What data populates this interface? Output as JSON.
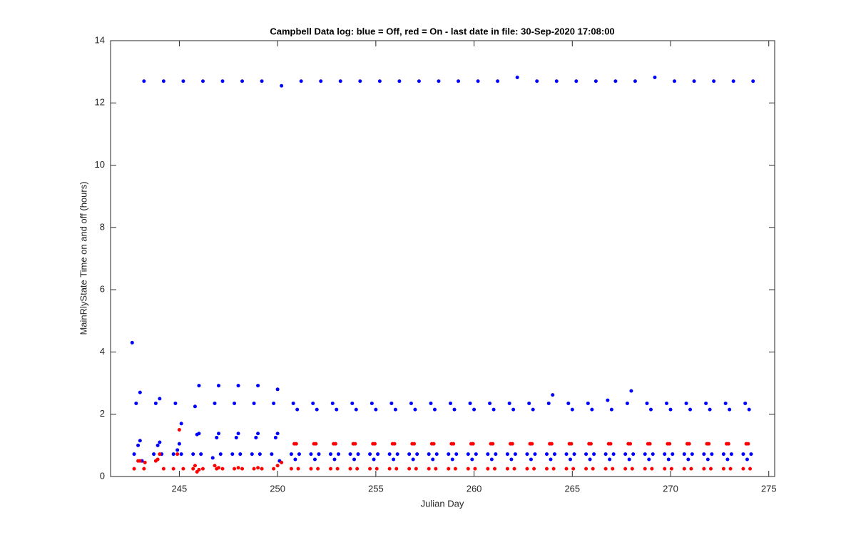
{
  "chart_data": {
    "type": "scatter",
    "title": "Campbell Data log: blue = Off, red = On -  last date in file: 30-Sep-2020 17:08:00",
    "x_label": "Julian Day",
    "y_label": "MainRlyState Time on and off (hours)",
    "xlim": [
      241.5,
      275.3
    ],
    "ylim": [
      0,
      14
    ],
    "xticks": [
      245,
      250,
      255,
      260,
      265,
      270,
      275
    ],
    "yticks": [
      0,
      2,
      4,
      6,
      8,
      10,
      12,
      14
    ],
    "series": [
      {
        "color": "#0000ff",
        "x": [
          243.2,
          244.2,
          245.2,
          246.2,
          247.2,
          248.2,
          249.2,
          250.2,
          251.2,
          252.2,
          253.2,
          254.2,
          255.2,
          256.2,
          257.2,
          258.2,
          259.2,
          260.2,
          261.2,
          262.2,
          263.2,
          264.2,
          265.2,
          266.2,
          267.2,
          268.2,
          269.2,
          270.2,
          271.2,
          272.2,
          273.2,
          274.2,
          242.6,
          242.8,
          243.0,
          243.8,
          244.0,
          244.8,
          245.1,
          245.8,
          246.0,
          246.8,
          247.0,
          247.8,
          248.0,
          248.8,
          249.0,
          249.8,
          250.0,
          250.8,
          251,
          251.8,
          252,
          252.8,
          253,
          253.8,
          254,
          254.8,
          255,
          255.8,
          256,
          256.8,
          257,
          257.8,
          258,
          258.8,
          259,
          259.8,
          260,
          260.8,
          261,
          261.8,
          262,
          262.8,
          263,
          263.8,
          264,
          264.8,
          265,
          265.8,
          266,
          266.8,
          267,
          267.8,
          268,
          268.8,
          269,
          269.8,
          270,
          270.8,
          271,
          271.8,
          272,
          272.8,
          273,
          273.8,
          274,
          242.7,
          242.9,
          243.0,
          243.1,
          243.7,
          243.9,
          244.0,
          244.1,
          244.7,
          244.9,
          245.0,
          245.1,
          245.7,
          245.9,
          246.0,
          246.1,
          246.7,
          246.9,
          247.0,
          247.1,
          247.7,
          247.9,
          248.0,
          248.1,
          248.7,
          248.9,
          249.0,
          249.1,
          249.7,
          249.9,
          250.0,
          250.1,
          250.7,
          250.9,
          251.1,
          251.7,
          251.9,
          252.1,
          252.7,
          252.9,
          253.1,
          253.7,
          253.9,
          254.1,
          254.7,
          254.9,
          255.1,
          255.7,
          255.9,
          256.1,
          256.7,
          256.9,
          257.1,
          257.7,
          257.9,
          258.1,
          258.7,
          258.9,
          259.1,
          259.7,
          259.9,
          260.1,
          260.7,
          260.9,
          261.1,
          261.7,
          261.9,
          262.1,
          262.7,
          262.9,
          263.1,
          263.7,
          263.9,
          264.1,
          264.7,
          264.9,
          265.1,
          265.7,
          265.9,
          266.1,
          266.7,
          266.9,
          267.1,
          267.7,
          267.9,
          268.1,
          268.7,
          268.9,
          269.1,
          269.7,
          269.9,
          270.1,
          270.7,
          270.9,
          271.1,
          271.7,
          271.9,
          272.1,
          272.7,
          272.9,
          273.1,
          273.7,
          273.9,
          274.1
        ],
        "values": [
          12.7,
          12.7,
          12.7,
          12.7,
          12.7,
          12.7,
          12.7,
          12.55,
          12.7,
          12.7,
          12.7,
          12.7,
          12.7,
          12.7,
          12.7,
          12.7,
          12.7,
          12.7,
          12.7,
          12.82,
          12.7,
          12.7,
          12.7,
          12.7,
          12.7,
          12.7,
          12.82,
          12.7,
          12.7,
          12.7,
          12.7,
          12.7,
          4.3,
          2.35,
          2.7,
          2.35,
          2.5,
          2.35,
          1.7,
          2.25,
          2.92,
          2.35,
          2.92,
          2.35,
          2.92,
          2.35,
          2.92,
          2.35,
          2.8,
          2.35,
          2.15,
          2.35,
          2.15,
          2.35,
          2.15,
          2.35,
          2.15,
          2.35,
          2.15,
          2.35,
          2.15,
          2.35,
          2.15,
          2.35,
          2.15,
          2.35,
          2.15,
          2.35,
          2.15,
          2.35,
          2.15,
          2.35,
          2.15,
          2.35,
          2.15,
          2.35,
          2.62,
          2.35,
          2.15,
          2.35,
          2.15,
          2.45,
          2.15,
          2.35,
          2.75,
          2.35,
          2.15,
          2.35,
          2.15,
          2.35,
          2.15,
          2.35,
          2.15,
          2.35,
          2.15,
          2.35,
          2.15,
          0.72,
          1.0,
          1.15,
          0.5,
          0.72,
          1.0,
          1.1,
          0.72,
          0.72,
          0.85,
          1.05,
          0.72,
          0.72,
          1.35,
          1.38,
          0.72,
          0.6,
          1.25,
          1.38,
          0.72,
          0.72,
          1.25,
          1.38,
          0.72,
          0.72,
          1.25,
          1.38,
          0.72,
          0.72,
          1.25,
          1.38,
          0.5,
          0.72,
          0.55,
          0.72,
          0.72,
          0.55,
          0.72,
          0.72,
          0.55,
          0.72,
          0.72,
          0.55,
          0.72,
          0.72,
          0.55,
          0.72,
          0.72,
          0.55,
          0.72,
          0.72,
          0.55,
          0.72,
          0.72,
          0.55,
          0.72,
          0.72,
          0.55,
          0.72,
          0.72,
          0.55,
          0.72,
          0.72,
          0.55,
          0.72,
          0.72,
          0.55,
          0.72,
          0.72,
          0.55,
          0.72,
          0.72,
          0.55,
          0.72,
          0.72,
          0.55,
          0.72,
          0.72,
          0.55,
          0.72,
          0.72,
          0.55,
          0.72,
          0.72,
          0.55,
          0.72,
          0.72,
          0.55,
          0.72,
          0.72,
          0.55,
          0.72,
          0.72,
          0.55,
          0.72,
          0.72,
          0.55,
          0.72,
          0.72,
          0.55,
          0.72,
          0.72,
          0.55,
          0.72
        ]
      },
      {
        "color": "#ff0000",
        "x": [
          242.7,
          242.9,
          243.0,
          243.2,
          243.25,
          243.8,
          243.9,
          244.0,
          244.2,
          244.7,
          244.9,
          245.0,
          245.2,
          245.7,
          245.8,
          245.9,
          246.0,
          246.2,
          246.8,
          246.9,
          247.0,
          247.2,
          247.8,
          248.0,
          248.2,
          248.8,
          249.0,
          249.2,
          249.8,
          250.0,
          250.2,
          250.7,
          250.85,
          250.95,
          251.05,
          251.7,
          251.85,
          251.95,
          252.05,
          252.7,
          252.85,
          252.95,
          253.05,
          253.7,
          253.85,
          253.95,
          254.05,
          254.7,
          254.85,
          254.95,
          255.05,
          255.7,
          255.85,
          255.95,
          256.05,
          256.7,
          256.85,
          256.95,
          257.05,
          257.7,
          257.85,
          257.95,
          258.05,
          258.7,
          258.85,
          258.95,
          259.05,
          259.7,
          259.85,
          259.95,
          260.05,
          260.7,
          260.85,
          260.95,
          261.05,
          261.7,
          261.85,
          261.95,
          262.05,
          262.7,
          262.85,
          262.95,
          263.05,
          263.7,
          263.85,
          263.95,
          264.05,
          264.7,
          264.85,
          264.95,
          265.05,
          265.7,
          265.85,
          265.95,
          266.05,
          266.7,
          266.85,
          266.95,
          267.05,
          267.7,
          267.85,
          267.95,
          268.05,
          268.7,
          268.85,
          268.95,
          269.05,
          269.7,
          269.85,
          269.95,
          270.05,
          270.7,
          270.85,
          270.95,
          271.05,
          271.7,
          271.85,
          271.95,
          272.05,
          272.7,
          272.85,
          272.95,
          273.05,
          273.7,
          273.85,
          273.95,
          274.05
        ],
        "values": [
          0.25,
          0.5,
          0.5,
          0.25,
          0.45,
          0.5,
          0.55,
          0.72,
          0.25,
          0.25,
          0.72,
          1.5,
          0.25,
          0.25,
          0.35,
          0.15,
          0.22,
          0.25,
          0.35,
          0.25,
          0.28,
          0.25,
          0.25,
          0.28,
          0.25,
          0.25,
          0.28,
          0.25,
          0.25,
          0.35,
          0.45,
          0.25,
          1.05,
          1.05,
          0.25,
          0.25,
          1.05,
          1.05,
          0.25,
          0.25,
          1.05,
          1.05,
          0.25,
          0.25,
          1.05,
          1.05,
          0.25,
          0.25,
          1.05,
          1.05,
          0.25,
          0.25,
          1.05,
          1.05,
          0.25,
          0.25,
          1.05,
          1.05,
          0.25,
          0.25,
          1.05,
          1.05,
          0.25,
          0.25,
          1.05,
          1.05,
          0.25,
          0.25,
          1.05,
          1.05,
          0.25,
          0.25,
          1.05,
          1.05,
          0.25,
          0.25,
          1.05,
          1.05,
          0.25,
          0.25,
          1.05,
          1.05,
          0.25,
          0.25,
          1.05,
          1.05,
          0.25,
          0.25,
          1.05,
          1.05,
          0.25,
          0.25,
          1.05,
          1.05,
          0.25,
          0.25,
          1.05,
          1.05,
          0.25,
          0.25,
          1.05,
          1.05,
          0.25,
          0.25,
          1.05,
          1.05,
          0.25,
          0.25,
          1.05,
          1.05,
          0.25,
          0.25,
          1.05,
          1.05,
          0.25,
          0.25,
          1.05,
          1.05,
          0.25,
          0.25,
          1.05,
          1.05,
          0.25,
          0.25,
          1.05,
          1.05,
          0.25
        ]
      }
    ]
  }
}
